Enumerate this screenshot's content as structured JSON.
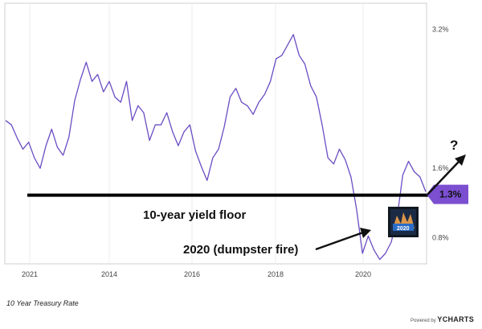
{
  "chart_data": {
    "type": "line",
    "title": "10 Year Treasury Rate",
    "series_color": "#6a4cc3",
    "x_tick_labels": [
      "2021",
      "2014",
      "2016",
      "2018",
      "2020"
    ],
    "y_tick_labels": [
      "3.2%",
      "1.6%",
      "0.8%"
    ],
    "ylim": [
      0.5,
      3.5
    ],
    "series": [
      {
        "values": [
          2.15,
          2.1,
          1.95,
          1.82,
          1.9,
          1.72,
          1.6,
          1.86,
          2.05,
          1.84,
          1.75,
          1.96,
          2.38,
          2.62,
          2.82,
          2.6,
          2.68,
          2.48,
          2.6,
          2.42,
          2.36,
          2.6,
          2.15,
          2.32,
          2.24,
          1.92,
          2.1,
          2.1,
          2.24,
          2.02,
          1.86,
          2.02,
          2.1,
          1.8,
          1.62,
          1.46,
          1.72,
          1.82,
          2.08,
          2.42,
          2.52,
          2.36,
          2.32,
          2.22,
          2.36,
          2.45,
          2.6,
          2.86,
          2.9,
          3.02,
          3.14,
          2.9,
          2.8,
          2.55,
          2.42,
          2.1,
          1.72,
          1.65,
          1.82,
          1.7,
          1.5,
          1.12,
          0.62,
          0.82,
          0.66,
          0.55,
          0.62,
          0.75,
          1.02,
          1.52,
          1.68,
          1.56,
          1.5,
          1.33
        ],
        "marker_value": 1.3,
        "marker_label": "1.3%"
      }
    ],
    "annotations": {
      "floor_label": "10-year yield floor",
      "arrow_label": "2020 (dumpster fire)",
      "question_mark": "?",
      "badge_text": "2020"
    },
    "floor_line_color": "#000000",
    "marker_color": "#7b4fd0"
  },
  "footer": {
    "chart_name": "10 Year Treasury Rate",
    "powered_by": "Powered by",
    "brand": "YCHARTS"
  }
}
